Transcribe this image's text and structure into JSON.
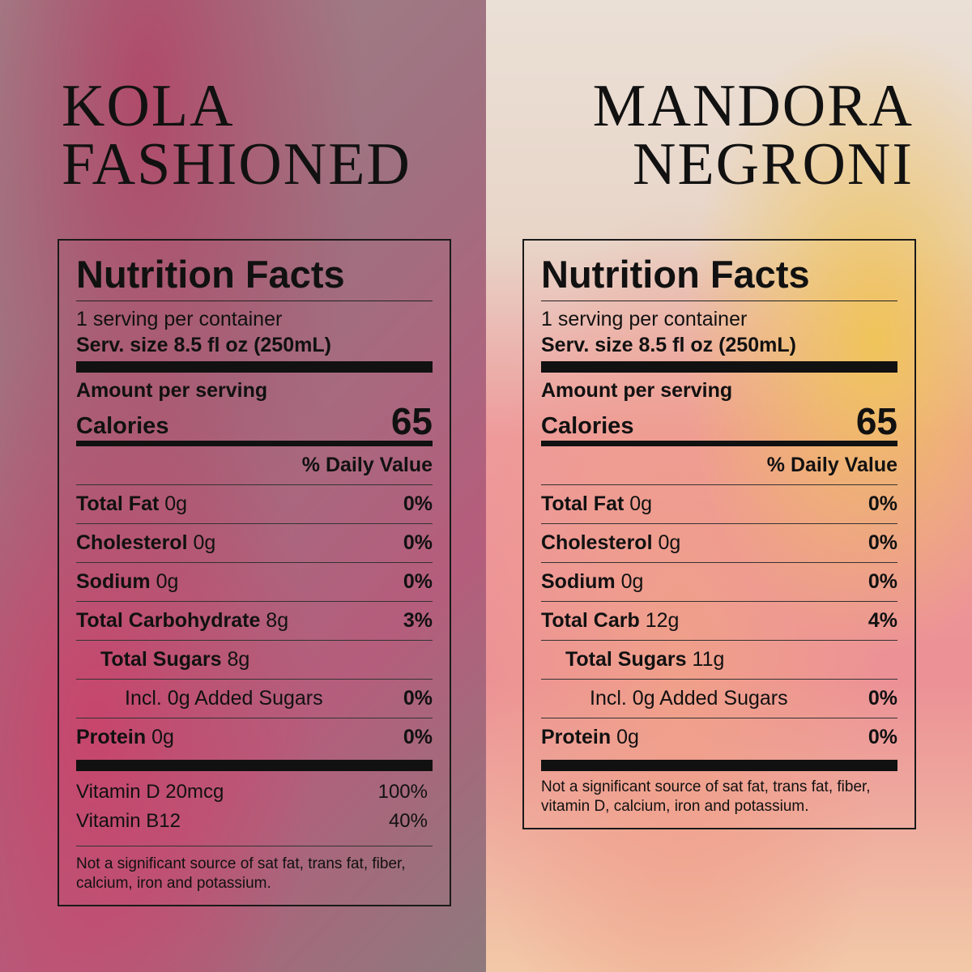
{
  "products": [
    {
      "title": [
        "KOLA",
        "FASHIONED"
      ],
      "label": {
        "heading": "Nutrition Facts",
        "servings": "1 serving per container",
        "serving_size": "Serv. size 8.5 fl oz (250mL)",
        "amount_per_serving": "Amount per serving",
        "calories_label": "Calories",
        "calories": "65",
        "daily_value_header": "% Daily Value",
        "nutrients": [
          {
            "name": "Total Fat",
            "amount": "0g",
            "dv": "0%"
          },
          {
            "name": "Cholesterol",
            "amount": "0g",
            "dv": "0%"
          },
          {
            "name": "Sodium",
            "amount": "0g",
            "dv": "0%"
          },
          {
            "name": "Total Carbohydrate",
            "amount": "8g",
            "dv": "3%",
            "sub": [
              {
                "name": "Total Sugars",
                "amount": "8g",
                "sub": [
                  {
                    "text": "Incl. 0g Added Sugars",
                    "dv": "0%"
                  }
                ]
              }
            ]
          },
          {
            "name": "Protein",
            "amount": "0g",
            "dv": "0%"
          }
        ],
        "vitamins": [
          {
            "name": "Vitamin D 20mcg",
            "dv": "100%"
          },
          {
            "name": "Vitamin B12",
            "dv": "40%"
          }
        ],
        "footnote": "Not a significant source of sat fat, trans fat, fiber, calcium, iron and potassium."
      }
    },
    {
      "title": [
        "MANDORA",
        "NEGRONI"
      ],
      "label": {
        "heading": "Nutrition Facts",
        "servings": "1 serving per container",
        "serving_size": "Serv. size 8.5 fl oz (250mL)",
        "amount_per_serving": "Amount per serving",
        "calories_label": "Calories",
        "calories": "65",
        "daily_value_header": "% Daily Value",
        "nutrients": [
          {
            "name": "Total Fat",
            "amount": "0g",
            "dv": "0%"
          },
          {
            "name": "Cholesterol",
            "amount": "0g",
            "dv": "0%"
          },
          {
            "name": "Sodium",
            "amount": "0g",
            "dv": "0%"
          },
          {
            "name": "Total Carb",
            "amount": "12g",
            "dv": "4%",
            "sub": [
              {
                "name": "Total Sugars",
                "amount": "11g",
                "sub": [
                  {
                    "text": "Incl. 0g Added Sugars",
                    "dv": "0%"
                  }
                ]
              }
            ]
          },
          {
            "name": "Protein",
            "amount": "0g",
            "dv": "0%"
          }
        ],
        "footnote": "Not a significant source of sat fat, trans fat, fiber, vitamin D, calcium, iron and potassium."
      }
    }
  ]
}
